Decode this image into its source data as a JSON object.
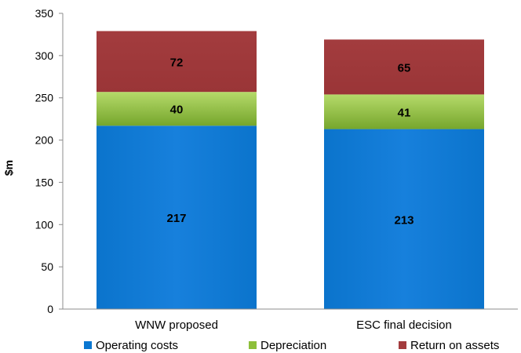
{
  "chart_data": {
    "type": "bar",
    "stacked": true,
    "categories": [
      "WNW proposed",
      "ESC final decision"
    ],
    "series": [
      {
        "name": "Operating costs",
        "values": [
          217,
          213
        ],
        "color": "#0a77d1"
      },
      {
        "name": "Depreciation",
        "values": [
          40,
          41
        ],
        "color": "#8dbf3a"
      },
      {
        "name": "Return on assets",
        "values": [
          72,
          65
        ],
        "color": "#a33c3e"
      }
    ],
    "title": "",
    "xlabel": "",
    "ylabel": "$m",
    "ylim": [
      0,
      350
    ],
    "yticks": [
      0,
      50,
      100,
      150,
      200,
      250,
      300,
      350
    ],
    "grid": false,
    "legend": "bottom"
  }
}
